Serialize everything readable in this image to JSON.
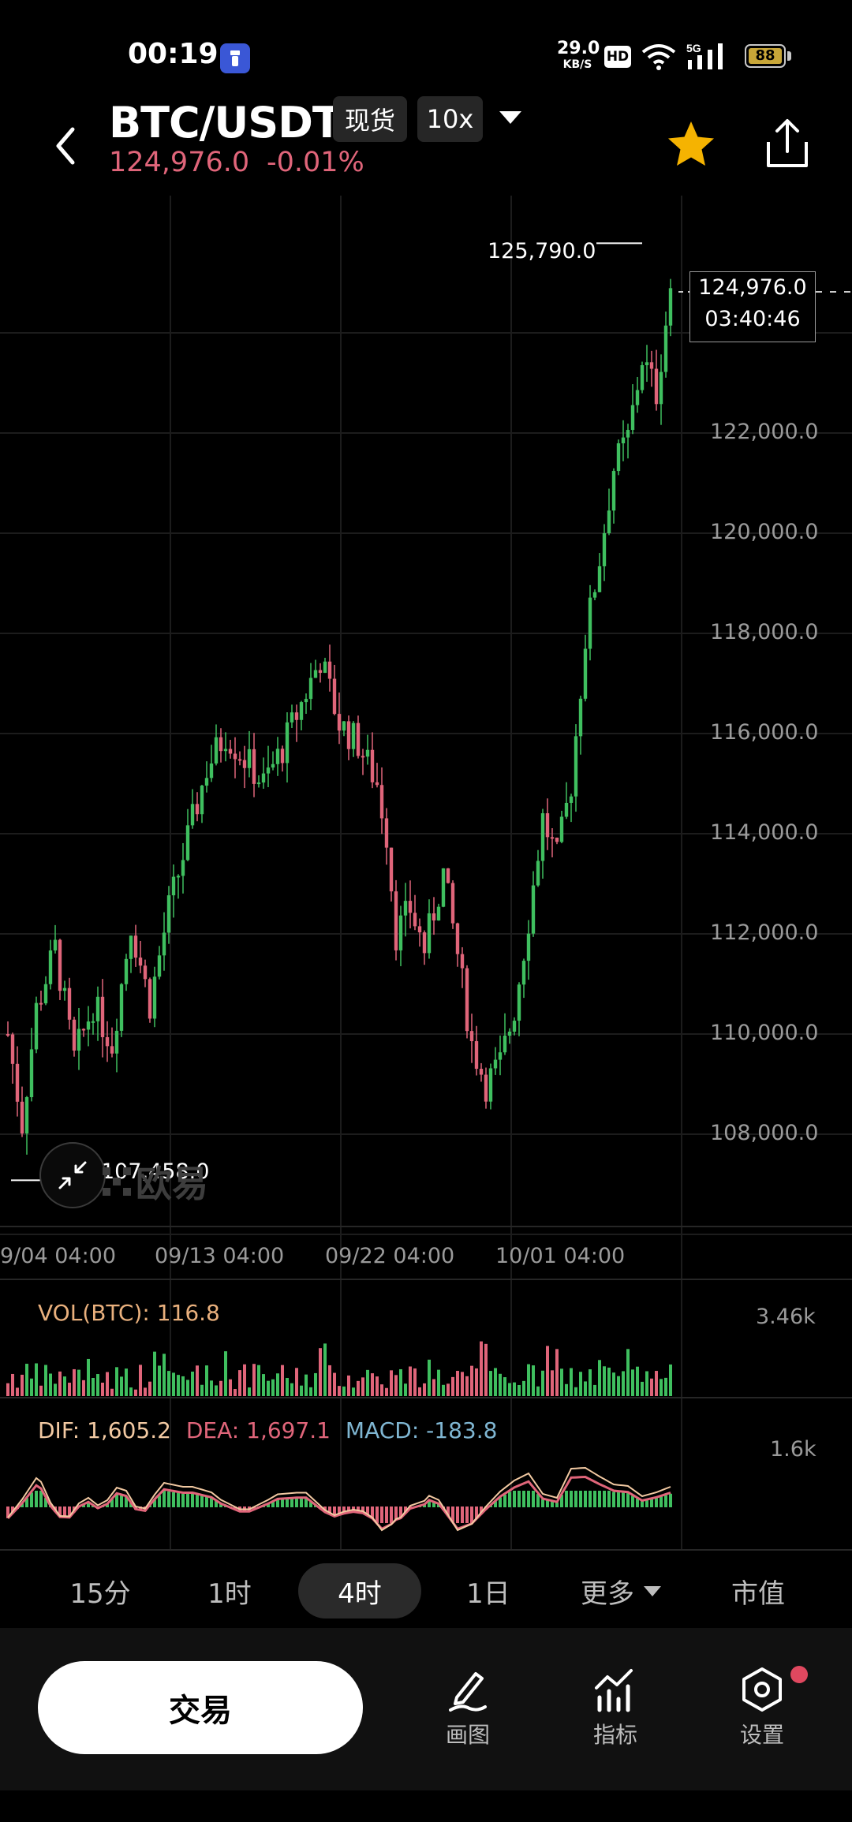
{
  "status_bar": {
    "time": "00:19",
    "net_speed": "29.0",
    "net_speed_unit": "KB/S",
    "hd": "HD",
    "network": "5G",
    "battery": "88"
  },
  "header": {
    "pair": "BTC/USDT",
    "spot_tag": "现货",
    "leverage_tag": "10x",
    "last_price": "124,976.0",
    "change_pct": "-0.01%"
  },
  "chart_data": {
    "type": "candlestick",
    "interval": "4时",
    "ylim": [
      106500,
      126000
    ],
    "y_ticks": [
      "122,000.0",
      "120,000.0",
      "118,000.0",
      "116,000.0",
      "114,000.0",
      "112,000.0",
      "110,000.0",
      "108,000.0"
    ],
    "y_tick_values": [
      122000,
      120000,
      118000,
      116000,
      114000,
      112000,
      110000,
      108000
    ],
    "x_ticks": [
      "9/04 04:00",
      "09/13 04:00",
      "09/22 04:00",
      "10/01 04:00"
    ],
    "high_label": "125,790.0",
    "low_label": "107,458.0",
    "current_price": "124,976.0",
    "countdown": "03:40:46",
    "close_path": [
      [
        0,
        110000
      ],
      [
        3,
        108200
      ],
      [
        6,
        110500
      ],
      [
        10,
        111700
      ],
      [
        14,
        109500
      ],
      [
        18,
        110600
      ],
      [
        22,
        109800
      ],
      [
        26,
        112200
      ],
      [
        30,
        110600
      ],
      [
        34,
        112500
      ],
      [
        38,
        113900
      ],
      [
        42,
        115300
      ],
      [
        46,
        116000
      ],
      [
        50,
        115500
      ],
      [
        54,
        115000
      ],
      [
        58,
        115700
      ],
      [
        62,
        116600
      ],
      [
        66,
        117500
      ],
      [
        70,
        116200
      ],
      [
        74,
        115800
      ],
      [
        78,
        115000
      ],
      [
        80,
        114000
      ],
      [
        82,
        112000
      ],
      [
        85,
        112500
      ],
      [
        88,
        111700
      ],
      [
        92,
        113200
      ],
      [
        95,
        111600
      ],
      [
        98,
        109800
      ],
      [
        101,
        109000
      ],
      [
        104,
        109400
      ],
      [
        107,
        110500
      ],
      [
        110,
        112300
      ],
      [
        113,
        114300
      ],
      [
        116,
        113500
      ],
      [
        119,
        115000
      ],
      [
        122,
        117900
      ],
      [
        125,
        119500
      ],
      [
        128,
        121300
      ],
      [
        131,
        121900
      ],
      [
        134,
        123500
      ],
      [
        137,
        122800
      ],
      [
        140,
        124900
      ]
    ],
    "candle_count": 140,
    "volume": {
      "label": "VOL(BTC): 116.8",
      "max_label": "3.46k"
    },
    "macd": {
      "dif": "DIF: 1,605.2",
      "dea": "DEA: 1,697.1",
      "macd": "MACD: -183.8",
      "max_label": "1.6k"
    },
    "colors": {
      "up": "#3fbf5f",
      "down": "#e0657a",
      "dif": "#f2c9a2",
      "dea": "#e0657a",
      "macd_text": "#7fb6d2",
      "vol_text": "#e9b07d"
    }
  },
  "watermark": "欧易",
  "intervals": [
    "15分",
    "1时",
    "4时",
    "1日",
    "更多",
    "市值"
  ],
  "bottom": {
    "trade": "交易",
    "draw": "画图",
    "indicators": "指标",
    "settings": "设置"
  }
}
